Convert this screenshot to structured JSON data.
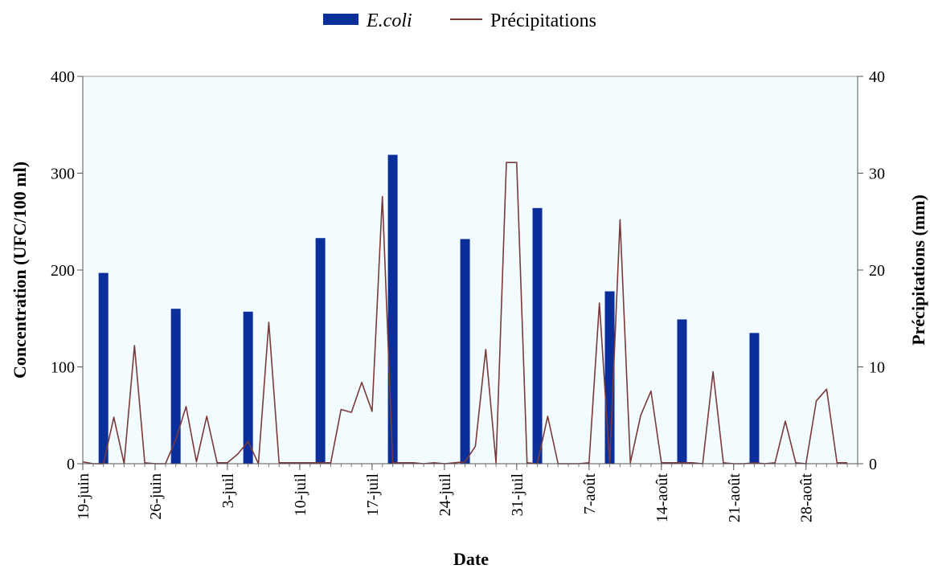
{
  "chart_data": {
    "type": "bar+line",
    "xlabel": "Date",
    "ylabel_left": "Concentration (UFC/100 ml)",
    "ylabel_right": "Précipitations (mm)",
    "ylim_left": [
      0,
      400
    ],
    "ylim_right": [
      0,
      40
    ],
    "yticks_left": [
      "0",
      "100",
      "200",
      "300",
      "400"
    ],
    "yticks_right": [
      "0",
      "10",
      "20",
      "30",
      "40"
    ],
    "x_tick_labels": [
      "19-juin",
      "26-juin",
      "3-juil",
      "10-juil",
      "17-juil",
      "24-juil",
      "31-juil",
      "7-août",
      "14-août",
      "21-août",
      "28-août"
    ],
    "x_day_range": [
      0,
      75
    ],
    "x_tick_days": [
      0,
      7,
      14,
      21,
      28,
      35,
      42,
      49,
      56,
      63,
      70
    ],
    "grid": false,
    "legend_position": "top-center",
    "plot_background": "#f2fbfd",
    "series": [
      {
        "name": "E.coli",
        "kind": "bar",
        "axis": "left",
        "color": "#0a2f9a",
        "points": [
          {
            "day": 2,
            "value": 197
          },
          {
            "day": 9,
            "value": 160
          },
          {
            "day": 16,
            "value": 157
          },
          {
            "day": 23,
            "value": 233
          },
          {
            "day": 30,
            "value": 319
          },
          {
            "day": 37,
            "value": 232
          },
          {
            "day": 44,
            "value": 264
          },
          {
            "day": 51,
            "value": 178
          },
          {
            "day": 58,
            "value": 149
          },
          {
            "day": 65,
            "value": 135
          }
        ]
      },
      {
        "name": "Précipitations",
        "kind": "line",
        "axis": "right",
        "color": "#7b3a3a",
        "x": [
          0,
          1,
          2,
          3,
          4,
          5,
          6,
          7,
          8,
          9,
          10,
          11,
          12,
          13,
          14,
          15,
          16,
          17,
          18,
          19,
          20,
          21,
          22,
          23,
          24,
          25,
          26,
          27,
          28,
          29,
          30,
          31,
          32,
          33,
          34,
          35,
          36,
          37,
          38,
          39,
          40,
          41,
          42,
          43,
          44,
          45,
          46,
          47,
          48,
          49,
          50,
          51,
          52,
          53,
          54,
          55,
          56,
          57,
          58,
          59,
          60,
          61,
          62,
          63,
          64,
          65,
          66,
          67,
          68,
          69,
          70,
          71,
          72,
          73,
          74
        ],
        "values": [
          0.2,
          0,
          0,
          4.8,
          0,
          12.2,
          0.1,
          0,
          0,
          2.5,
          5.9,
          0.2,
          4.9,
          0.1,
          0.1,
          1,
          2.3,
          0,
          14.6,
          0.1,
          0.1,
          0.1,
          0.1,
          0.1,
          0.1,
          5.6,
          5.3,
          8.4,
          5.4,
          27.6,
          0.1,
          0.1,
          0.1,
          0,
          0.1,
          0,
          0.1,
          0.2,
          1.8,
          11.8,
          0.1,
          31.1,
          31.1,
          0.1,
          0,
          4.9,
          0,
          0,
          0,
          0.1,
          16.6,
          0.1,
          25.2,
          0.1,
          5,
          7.5,
          0.1,
          0.1,
          0.1,
          0.1,
          0,
          9.5,
          0.1,
          0,
          0,
          0.1,
          0,
          0.1,
          4.4,
          0.1,
          0,
          6.5,
          7.7,
          0.1,
          0.1
        ]
      }
    ]
  }
}
